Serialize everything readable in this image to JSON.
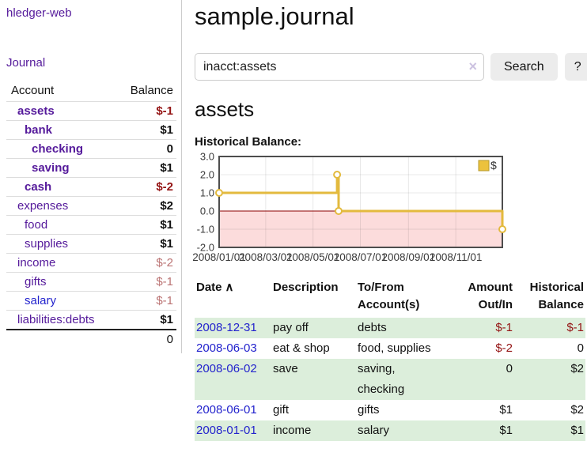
{
  "theme": {
    "link_purple": "#551a9b",
    "link_blue": "#2323cd",
    "negative_red": "#941414",
    "muted_negative": "#bb7373",
    "stripe_green": "#dceedb",
    "chart_line_gold": "#e3ba3e",
    "chart_negative_area_pink": "#fcdcdc",
    "chart_zero_line_red": "#8b0000",
    "chart_border_gray": "#4d4d4d"
  },
  "sidebar": {
    "brand": "hledger-web",
    "journal_link": "Journal",
    "accounts_table": {
      "account_header": "Account",
      "balance_header": "Balance",
      "rows": [
        {
          "name": "assets",
          "balance": "$-1",
          "indent": 0,
          "bold": true,
          "negative": true,
          "muted": false,
          "unvisited": false
        },
        {
          "name": "bank",
          "balance": "$1",
          "indent": 1,
          "bold": true,
          "negative": false,
          "muted": false,
          "unvisited": false
        },
        {
          "name": "checking",
          "balance": "0",
          "indent": 2,
          "bold": true,
          "negative": false,
          "muted": false,
          "unvisited": false
        },
        {
          "name": "saving",
          "balance": "$1",
          "indent": 2,
          "bold": true,
          "negative": false,
          "muted": false,
          "unvisited": false
        },
        {
          "name": "cash",
          "balance": "$-2",
          "indent": 1,
          "bold": true,
          "negative": true,
          "muted": false,
          "unvisited": false
        },
        {
          "name": "expenses",
          "balance": "$2",
          "indent": 0,
          "bold": false,
          "negative": false,
          "muted": false,
          "unvisited": false
        },
        {
          "name": "food",
          "balance": "$1",
          "indent": 1,
          "bold": false,
          "negative": false,
          "muted": false,
          "unvisited": false
        },
        {
          "name": "supplies",
          "balance": "$1",
          "indent": 1,
          "bold": false,
          "negative": false,
          "muted": false,
          "unvisited": false
        },
        {
          "name": "income",
          "balance": "$-2",
          "indent": 0,
          "bold": false,
          "negative": true,
          "muted": true,
          "unvisited": false
        },
        {
          "name": "gifts",
          "balance": "$-1",
          "indent": 1,
          "bold": false,
          "negative": true,
          "muted": true,
          "unvisited": false
        },
        {
          "name": "salary",
          "balance": "$-1",
          "indent": 1,
          "bold": false,
          "negative": true,
          "muted": true,
          "unvisited": true
        },
        {
          "name": "liabilities:debts",
          "balance": "$1",
          "indent": 0,
          "bold": false,
          "negative": false,
          "muted": false,
          "unvisited": false
        }
      ],
      "total": "0"
    }
  },
  "header": {
    "title": "sample.journal"
  },
  "search": {
    "value": "inacct:assets",
    "clear_icon": "×",
    "button_label": "Search",
    "help_label": "?"
  },
  "account_page": {
    "title": "assets",
    "chart_label": "Historical Balance:"
  },
  "chart_data": {
    "type": "line",
    "step": true,
    "title": "Historical Balance:",
    "legend": "$",
    "legend_position": "top-right",
    "grid": true,
    "negative_region_shaded": true,
    "ylim": [
      -2,
      3
    ],
    "y_ticks": [
      {
        "v": 3,
        "label": "3.0"
      },
      {
        "v": 2,
        "label": "2.0"
      },
      {
        "v": 1,
        "label": "1.0"
      },
      {
        "v": 0,
        "label": "0.0"
      },
      {
        "v": -1,
        "label": "-1.0"
      },
      {
        "v": -2,
        "label": "-2.0"
      }
    ],
    "xlim": [
      "2008-01-01",
      "2008-12-31"
    ],
    "x_ticks": [
      {
        "date": "2008-01-01",
        "label": "2008/01/01"
      },
      {
        "date": "2008-03-01",
        "label": "2008/03/01"
      },
      {
        "date": "2008-05-01",
        "label": "2008/05/01"
      },
      {
        "date": "2008-07-01",
        "label": "2008/07/01"
      },
      {
        "date": "2008-09-01",
        "label": "2008/09/01"
      },
      {
        "date": "2008-11-01",
        "label": "2008/11/01"
      }
    ],
    "series": [
      {
        "name": "$",
        "points": [
          {
            "date": "2008-01-01",
            "value": 1
          },
          {
            "date": "2008-06-01",
            "value": 2
          },
          {
            "date": "2008-06-03",
            "value": 0
          },
          {
            "date": "2008-12-31",
            "value": -1
          }
        ]
      }
    ]
  },
  "register": {
    "headers": {
      "date": "Date",
      "sort_icon": "∧",
      "description": "Description",
      "accounts": "To/From\nAccount(s)",
      "amount": "Amount\nOut/In",
      "balance": "Historical\nBalance"
    },
    "rows": [
      {
        "date": "2008-12-31",
        "description": "pay off",
        "accounts": "debts",
        "amount": "$-1",
        "amount_negative": true,
        "balance": "$-1",
        "balance_negative": true,
        "striped": true
      },
      {
        "date": "2008-06-03",
        "description": "eat & shop",
        "accounts": "food, supplies",
        "amount": "$-2",
        "amount_negative": true,
        "balance": "0",
        "balance_negative": false,
        "striped": false
      },
      {
        "date": "2008-06-02",
        "description": "save",
        "accounts": "saving,\nchecking",
        "amount": "0",
        "amount_negative": false,
        "balance": "$2",
        "balance_negative": false,
        "striped": true
      },
      {
        "date": "2008-06-01",
        "description": "gift",
        "accounts": "gifts",
        "amount": "$1",
        "amount_negative": false,
        "balance": "$2",
        "balance_negative": false,
        "striped": false
      },
      {
        "date": "2008-01-01",
        "description": "income",
        "accounts": "salary",
        "amount": "$1",
        "amount_negative": false,
        "balance": "$1",
        "balance_negative": false,
        "striped": true
      }
    ]
  }
}
